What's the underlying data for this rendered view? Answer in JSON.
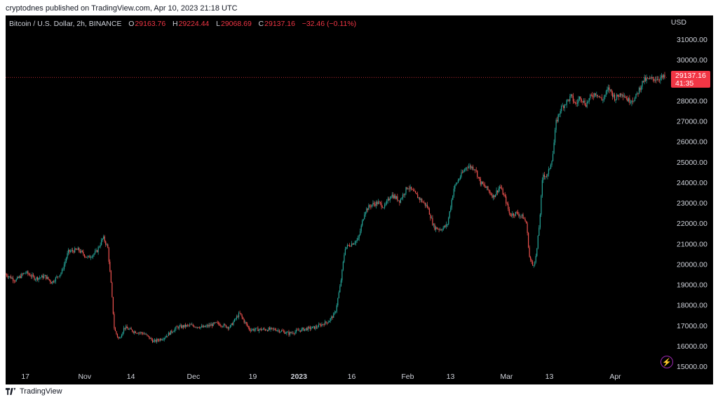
{
  "header": {
    "publisher_line": "cryptodnes published on TradingView.com, Apr 10, 2023 21:18 UTC"
  },
  "legend": {
    "symbol": "Bitcoin / U.S. Dollar, 2h, BINANCE",
    "open_label": "O",
    "open": "29163.76",
    "high_label": "H",
    "high": "29224.44",
    "low_label": "L",
    "low": "29068.69",
    "close_label": "C",
    "close": "29137.16",
    "change": "−32.46 (−0.11%)"
  },
  "price_badge": {
    "price": "29137.16",
    "countdown": "41:35"
  },
  "footer": {
    "brand": "TradingView"
  },
  "colors": {
    "up": "#26a69a",
    "down": "#ef5350",
    "background": "#000000",
    "badge": "#f23645"
  },
  "icons": {
    "bolt": "lightning-icon",
    "logo": "tradingview-logo-icon"
  },
  "chart_data": {
    "type": "candlestick",
    "currency": "USD",
    "ylim": [
      15000,
      31000
    ],
    "y_ticks": [
      "31000.00",
      "30000.00",
      "29000.00",
      "28000.00",
      "27000.00",
      "26000.00",
      "25000.00",
      "24000.00",
      "23000.00",
      "22000.00",
      "21000.00",
      "20000.00",
      "19000.00",
      "18000.00",
      "17000.00",
      "16000.00",
      "15000.00"
    ],
    "x_ticks": [
      {
        "label": "17",
        "t": 0.03
      },
      {
        "label": "Nov",
        "t": 0.12
      },
      {
        "label": "14",
        "t": 0.19
      },
      {
        "label": "Dec",
        "t": 0.285
      },
      {
        "label": "19",
        "t": 0.375
      },
      {
        "label": "2023",
        "t": 0.445
      },
      {
        "label": "16",
        "t": 0.525
      },
      {
        "label": "Feb",
        "t": 0.61
      },
      {
        "label": "13",
        "t": 0.675
      },
      {
        "label": "Mar",
        "t": 0.76
      },
      {
        "label": "13",
        "t": 0.825
      },
      {
        "label": "Apr",
        "t": 0.925
      }
    ],
    "last_price": 29137.16,
    "path": [
      [
        0.0,
        19500
      ],
      [
        0.015,
        19200
      ],
      [
        0.03,
        19600
      ],
      [
        0.045,
        19300
      ],
      [
        0.06,
        19400
      ],
      [
        0.07,
        19100
      ],
      [
        0.085,
        19600
      ],
      [
        0.095,
        20600
      ],
      [
        0.11,
        20700
      ],
      [
        0.125,
        20300
      ],
      [
        0.138,
        20600
      ],
      [
        0.148,
        21300
      ],
      [
        0.155,
        20800
      ],
      [
        0.16,
        19000
      ],
      [
        0.165,
        16800
      ],
      [
        0.172,
        16300
      ],
      [
        0.18,
        16900
      ],
      [
        0.195,
        16700
      ],
      [
        0.21,
        16600
      ],
      [
        0.225,
        16200
      ],
      [
        0.24,
        16400
      ],
      [
        0.26,
        16900
      ],
      [
        0.28,
        17000
      ],
      [
        0.3,
        16900
      ],
      [
        0.32,
        17100
      ],
      [
        0.34,
        16900
      ],
      [
        0.355,
        17600
      ],
      [
        0.36,
        17300
      ],
      [
        0.37,
        16800
      ],
      [
        0.39,
        16800
      ],
      [
        0.41,
        16800
      ],
      [
        0.43,
        16600
      ],
      [
        0.45,
        16800
      ],
      [
        0.47,
        16900
      ],
      [
        0.49,
        17200
      ],
      [
        0.5,
        17600
      ],
      [
        0.508,
        19000
      ],
      [
        0.515,
        20800
      ],
      [
        0.525,
        21000
      ],
      [
        0.535,
        21200
      ],
      [
        0.545,
        22600
      ],
      [
        0.555,
        22900
      ],
      [
        0.565,
        23000
      ],
      [
        0.575,
        22800
      ],
      [
        0.585,
        23400
      ],
      [
        0.598,
        23100
      ],
      [
        0.61,
        23800
      ],
      [
        0.625,
        23300
      ],
      [
        0.64,
        22800
      ],
      [
        0.65,
        21800
      ],
      [
        0.66,
        21700
      ],
      [
        0.67,
        21900
      ],
      [
        0.68,
        23700
      ],
      [
        0.69,
        24300
      ],
      [
        0.7,
        24800
      ],
      [
        0.712,
        24700
      ],
      [
        0.72,
        24000
      ],
      [
        0.73,
        23700
      ],
      [
        0.74,
        23300
      ],
      [
        0.75,
        23800
      ],
      [
        0.758,
        23200
      ],
      [
        0.765,
        22400
      ],
      [
        0.775,
        22500
      ],
      [
        0.785,
        22300
      ],
      [
        0.79,
        22000
      ],
      [
        0.795,
        20300
      ],
      [
        0.8,
        19900
      ],
      [
        0.805,
        20400
      ],
      [
        0.81,
        22000
      ],
      [
        0.815,
        24400
      ],
      [
        0.822,
        24300
      ],
      [
        0.83,
        25300
      ],
      [
        0.835,
        26900
      ],
      [
        0.842,
        27600
      ],
      [
        0.85,
        27900
      ],
      [
        0.858,
        28200
      ],
      [
        0.865,
        27800
      ],
      [
        0.872,
        28200
      ],
      [
        0.88,
        27800
      ],
      [
        0.888,
        28200
      ],
      [
        0.896,
        28400
      ],
      [
        0.905,
        28000
      ],
      [
        0.915,
        28600
      ],
      [
        0.925,
        28100
      ],
      [
        0.935,
        28400
      ],
      [
        0.945,
        28000
      ],
      [
        0.955,
        28100
      ],
      [
        0.962,
        28600
      ],
      [
        0.968,
        29000
      ],
      [
        1.0,
        29137.16
      ]
    ]
  }
}
